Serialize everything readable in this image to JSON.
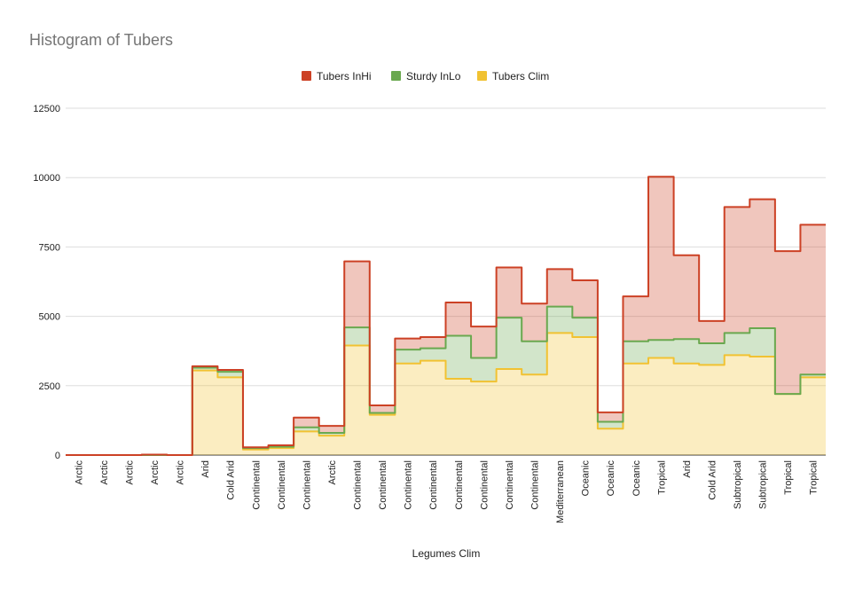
{
  "chart_data": {
    "type": "area",
    "subtype": "stepped-stacked",
    "title": "Histogram of Tubers",
    "xlabel": "Legumes Clim",
    "ylabel": "",
    "ylim": [
      0,
      12500
    ],
    "yticks": [
      0,
      2500,
      5000,
      7500,
      10000,
      12500
    ],
    "grid": true,
    "legend_position": "top",
    "categories": [
      "Arctic",
      "Arctic",
      "Arctic",
      "Arctic",
      "Arctic",
      "Arid",
      "Cold Arid",
      "Continental",
      "Continental",
      "Continental",
      "Arctic",
      "Continental",
      "Continental",
      "Continental",
      "Continental",
      "Continental",
      "Continental",
      "Continental",
      "Continental",
      "Mediterranean",
      "Oceanic",
      "Oceanic",
      "Oceanic",
      "Tropical",
      "Arid",
      "Cold Arid",
      "Subtropical",
      "Subtropical",
      "Tropical",
      "Tropical"
    ],
    "series": [
      {
        "name": "Tubers Clim",
        "color": "#f1c232",
        "values": [
          0,
          0,
          0,
          0,
          0,
          3050,
          2800,
          200,
          250,
          850,
          700,
          3950,
          1450,
          3300,
          3400,
          2750,
          2650,
          3100,
          2900,
          4400,
          4250,
          950,
          3300,
          3500,
          3300,
          3250,
          3600,
          3550,
          2200,
          2800
        ]
      },
      {
        "name": "Sturdy InLo",
        "color": "#6aa84f",
        "values": [
          0,
          0,
          0,
          0,
          0,
          100,
          200,
          50,
          50,
          150,
          100,
          650,
          70,
          500,
          450,
          1550,
          850,
          1850,
          1200,
          950,
          700,
          250,
          800,
          650,
          880,
          780,
          800,
          1020,
          0,
          100
        ]
      },
      {
        "name": "Tubers InHi",
        "color": "#cc4125",
        "values": [
          0,
          0,
          0,
          15,
          0,
          50,
          70,
          30,
          50,
          350,
          250,
          2380,
          270,
          400,
          400,
          1200,
          1130,
          1810,
          1360,
          1350,
          1350,
          340,
          1620,
          5880,
          3020,
          800,
          4540,
          4650,
          5150,
          5400
        ]
      }
    ]
  }
}
